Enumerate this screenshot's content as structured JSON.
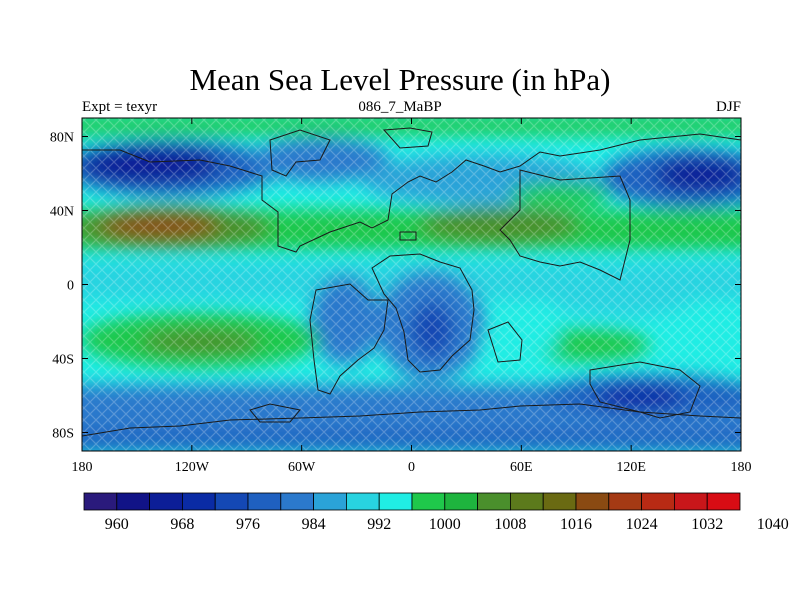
{
  "title": "Mean Sea Level Pressure (in hPa)",
  "subtitle_left": "Expt = texyr",
  "subtitle_center": "086_7_MaBP",
  "subtitle_right": "DJF",
  "x_ticks": [
    "180",
    "120W",
    "60W",
    "0",
    "60E",
    "120E",
    "180"
  ],
  "y_ticks": [
    "80N",
    "40N",
    "0",
    "40S",
    "80S"
  ],
  "colorbar": {
    "colors": [
      "#2a1a7c",
      "#111387",
      "#0c1e97",
      "#0a2ba5",
      "#1448b4",
      "#1f60c0",
      "#2b79cc",
      "#2aa3d8",
      "#28d3e0",
      "#20ede4",
      "#1fc84b",
      "#1eb43e",
      "#4a8f2c",
      "#5c7a1c",
      "#6a6a12",
      "#8a4a12",
      "#a53a14",
      "#b82a14",
      "#c8161a",
      "#d80c14"
    ],
    "labels": [
      "960",
      "968",
      "976",
      "984",
      "992",
      "1000",
      "1008",
      "1016",
      "1024",
      "1032",
      "1040"
    ]
  }
}
